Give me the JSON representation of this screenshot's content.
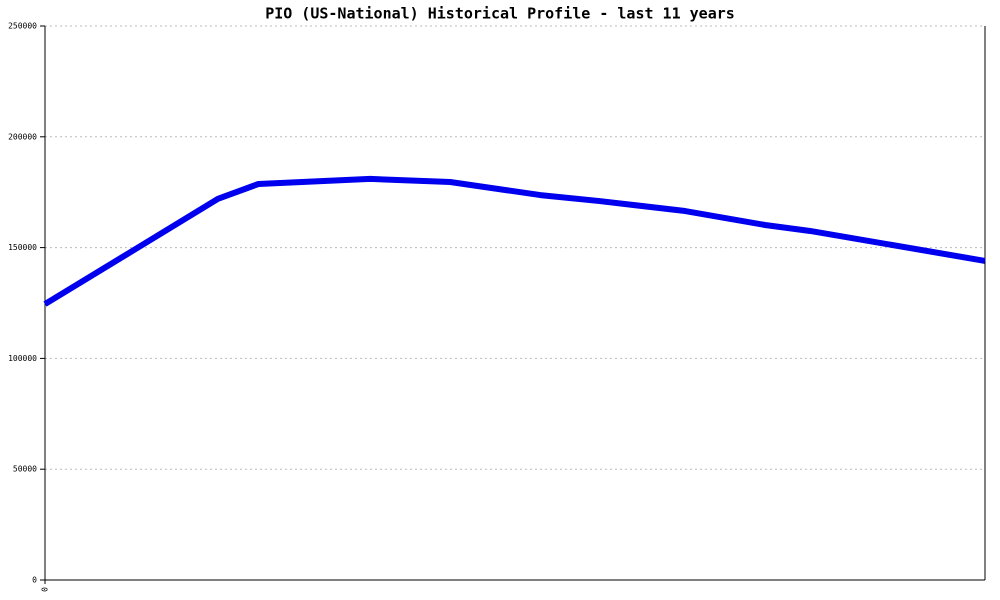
{
  "chart_data": {
    "type": "line",
    "title": "PIO (US-National) Historical Profile - last 11 years",
    "x": [
      0,
      1.84,
      2.27,
      3.46,
      4.31,
      5.27,
      5.9,
      6.81,
      7.66,
      8.14,
      10
    ],
    "series": [
      {
        "color": "#0000ee",
        "values": [
          124500,
          172000,
          178700,
          181000,
          179600,
          173700,
          171000,
          166500,
          160200,
          157500,
          144000
        ]
      }
    ],
    "xlim": [
      0,
      10
    ],
    "xticks": [
      0
    ],
    "ylim": [
      0,
      250000
    ],
    "yticks": [
      0,
      50000,
      100000,
      150000,
      200000,
      250000
    ],
    "grid": true
  }
}
